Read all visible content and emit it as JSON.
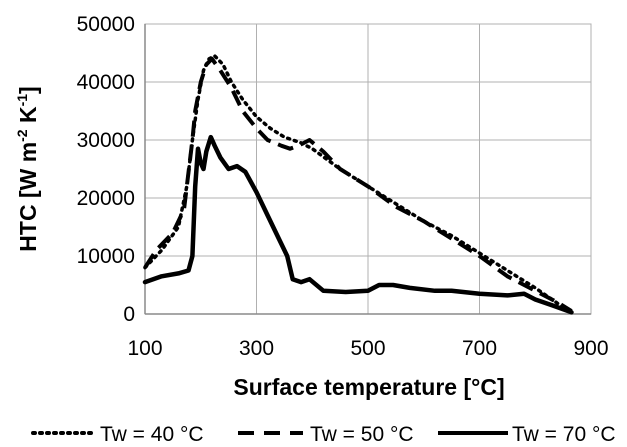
{
  "chart_data": {
    "type": "line",
    "xlabel": "Surface temperature [°C]",
    "ylabel_parts": [
      "HTC [W m",
      "-2",
      " K",
      "-1",
      "]"
    ],
    "xlim": [
      100,
      900
    ],
    "ylim": [
      0,
      50000
    ],
    "x_ticks": [
      "100",
      "300",
      "500",
      "700",
      "900"
    ],
    "y_ticks": [
      "0",
      "10000",
      "20000",
      "30000",
      "40000",
      "50000"
    ],
    "grid": true,
    "legend_position": "bottom",
    "series": [
      {
        "name": "Tw = 40 °C",
        "style": "dotted",
        "color": "#000000",
        "points": [
          [
            100,
            8000
          ],
          [
            130,
            11000
          ],
          [
            160,
            15000
          ],
          [
            175,
            22000
          ],
          [
            185,
            30000
          ],
          [
            195,
            37000
          ],
          [
            205,
            42000
          ],
          [
            215,
            44000
          ],
          [
            225,
            44500
          ],
          [
            240,
            43000
          ],
          [
            255,
            40000
          ],
          [
            275,
            37000
          ],
          [
            300,
            34000
          ],
          [
            325,
            32000
          ],
          [
            350,
            30500
          ],
          [
            380,
            29500
          ],
          [
            400,
            28500
          ],
          [
            450,
            25000
          ],
          [
            500,
            22000
          ],
          [
            550,
            19000
          ],
          [
            600,
            16000
          ],
          [
            650,
            13500
          ],
          [
            700,
            10500
          ],
          [
            750,
            7500
          ],
          [
            800,
            4500
          ],
          [
            830,
            2500
          ],
          [
            860,
            500
          ]
        ]
      },
      {
        "name": "Tw = 50 °C",
        "style": "dashed",
        "color": "#000000",
        "points": [
          [
            100,
            8000
          ],
          [
            120,
            11000
          ],
          [
            150,
            14000
          ],
          [
            170,
            18000
          ],
          [
            180,
            26000
          ],
          [
            185,
            30000
          ],
          [
            190,
            35000
          ],
          [
            200,
            40000
          ],
          [
            210,
            43000
          ],
          [
            220,
            44000
          ],
          [
            235,
            42000
          ],
          [
            255,
            39000
          ],
          [
            275,
            35000
          ],
          [
            300,
            32000
          ],
          [
            320,
            30000
          ],
          [
            345,
            29000
          ],
          [
            360,
            28500
          ],
          [
            375,
            29000
          ],
          [
            395,
            30000
          ],
          [
            420,
            28000
          ],
          [
            450,
            25000
          ],
          [
            500,
            22000
          ],
          [
            550,
            18500
          ],
          [
            600,
            16000
          ],
          [
            650,
            13000
          ],
          [
            700,
            10000
          ],
          [
            750,
            6500
          ],
          [
            800,
            4000
          ],
          [
            840,
            2000
          ],
          [
            865,
            500
          ]
        ]
      },
      {
        "name": "Tw = 70 °C",
        "style": "solid",
        "color": "#000000",
        "points": [
          [
            100,
            5500
          ],
          [
            130,
            6500
          ],
          [
            160,
            7000
          ],
          [
            178,
            7500
          ],
          [
            185,
            10000
          ],
          [
            190,
            22000
          ],
          [
            195,
            28500
          ],
          [
            200,
            26000
          ],
          [
            205,
            25000
          ],
          [
            210,
            28000
          ],
          [
            218,
            30500
          ],
          [
            225,
            29000
          ],
          [
            235,
            27000
          ],
          [
            250,
            25000
          ],
          [
            265,
            25500
          ],
          [
            280,
            24500
          ],
          [
            300,
            21000
          ],
          [
            320,
            17000
          ],
          [
            340,
            13000
          ],
          [
            355,
            10000
          ],
          [
            365,
            6000
          ],
          [
            380,
            5500
          ],
          [
            395,
            6000
          ],
          [
            420,
            4000
          ],
          [
            460,
            3800
          ],
          [
            500,
            4000
          ],
          [
            520,
            5000
          ],
          [
            545,
            5000
          ],
          [
            575,
            4500
          ],
          [
            620,
            4000
          ],
          [
            650,
            4000
          ],
          [
            700,
            3500
          ],
          [
            750,
            3200
          ],
          [
            780,
            3500
          ],
          [
            800,
            2500
          ],
          [
            830,
            1500
          ],
          [
            865,
            300
          ]
        ]
      }
    ]
  }
}
